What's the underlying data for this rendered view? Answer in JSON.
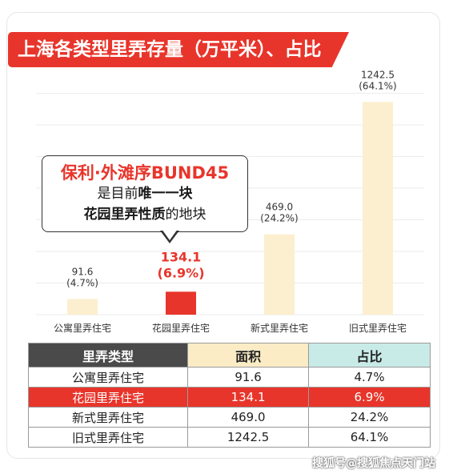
{
  "title": "上海各类型里弄存量（万平米）、占比",
  "colors": {
    "accent": "#e8352b",
    "bar_default": "#fcefcf",
    "grid": "#ebebeb",
    "header_type": "#4a4a4a",
    "header_area": "#fbecc6",
    "header_share": "#c9ebe8"
  },
  "callout": {
    "line1": "保利·外滩序BUND45",
    "line2_prefix": "是目前",
    "line2_bold": "唯一一块",
    "line3_bold": "花园里弄性质",
    "line3_suffix": "的地块"
  },
  "chart_data": {
    "type": "bar",
    "title": "上海各类型里弄存量（万平米）、占比",
    "categories": [
      "公寓里弄住宅",
      "花园里弄住宅",
      "新式里弄住宅",
      "旧式里弄住宅"
    ],
    "values": [
      91.6,
      134.1,
      469.0,
      1242.5
    ],
    "value_labels": [
      "91.6",
      "134.1",
      "469.0",
      "1242.5"
    ],
    "share_labels": [
      "(4.7%)",
      "(6.9%)",
      "(24.2%)",
      "(64.1%)"
    ],
    "highlight_index": 1,
    "ylim": [
      0,
      1300
    ],
    "grid": true,
    "xlabel": "",
    "ylabel": ""
  },
  "table": {
    "headers": [
      "里弄类型",
      "面积",
      "占比"
    ],
    "rows": [
      {
        "type": "公寓里弄住宅",
        "area": "91.6",
        "share": "4.7%",
        "highlight": false
      },
      {
        "type": "花园里弄住宅",
        "area": "134.1",
        "share": "6.9%",
        "highlight": true
      },
      {
        "type": "新式里弄住宅",
        "area": "469.0",
        "share": "24.2%",
        "highlight": false
      },
      {
        "type": "旧式里弄住宅",
        "area": "1242.5",
        "share": "64.1%",
        "highlight": false
      }
    ]
  },
  "watermark": "搜狐号@搜狐焦点天门站"
}
